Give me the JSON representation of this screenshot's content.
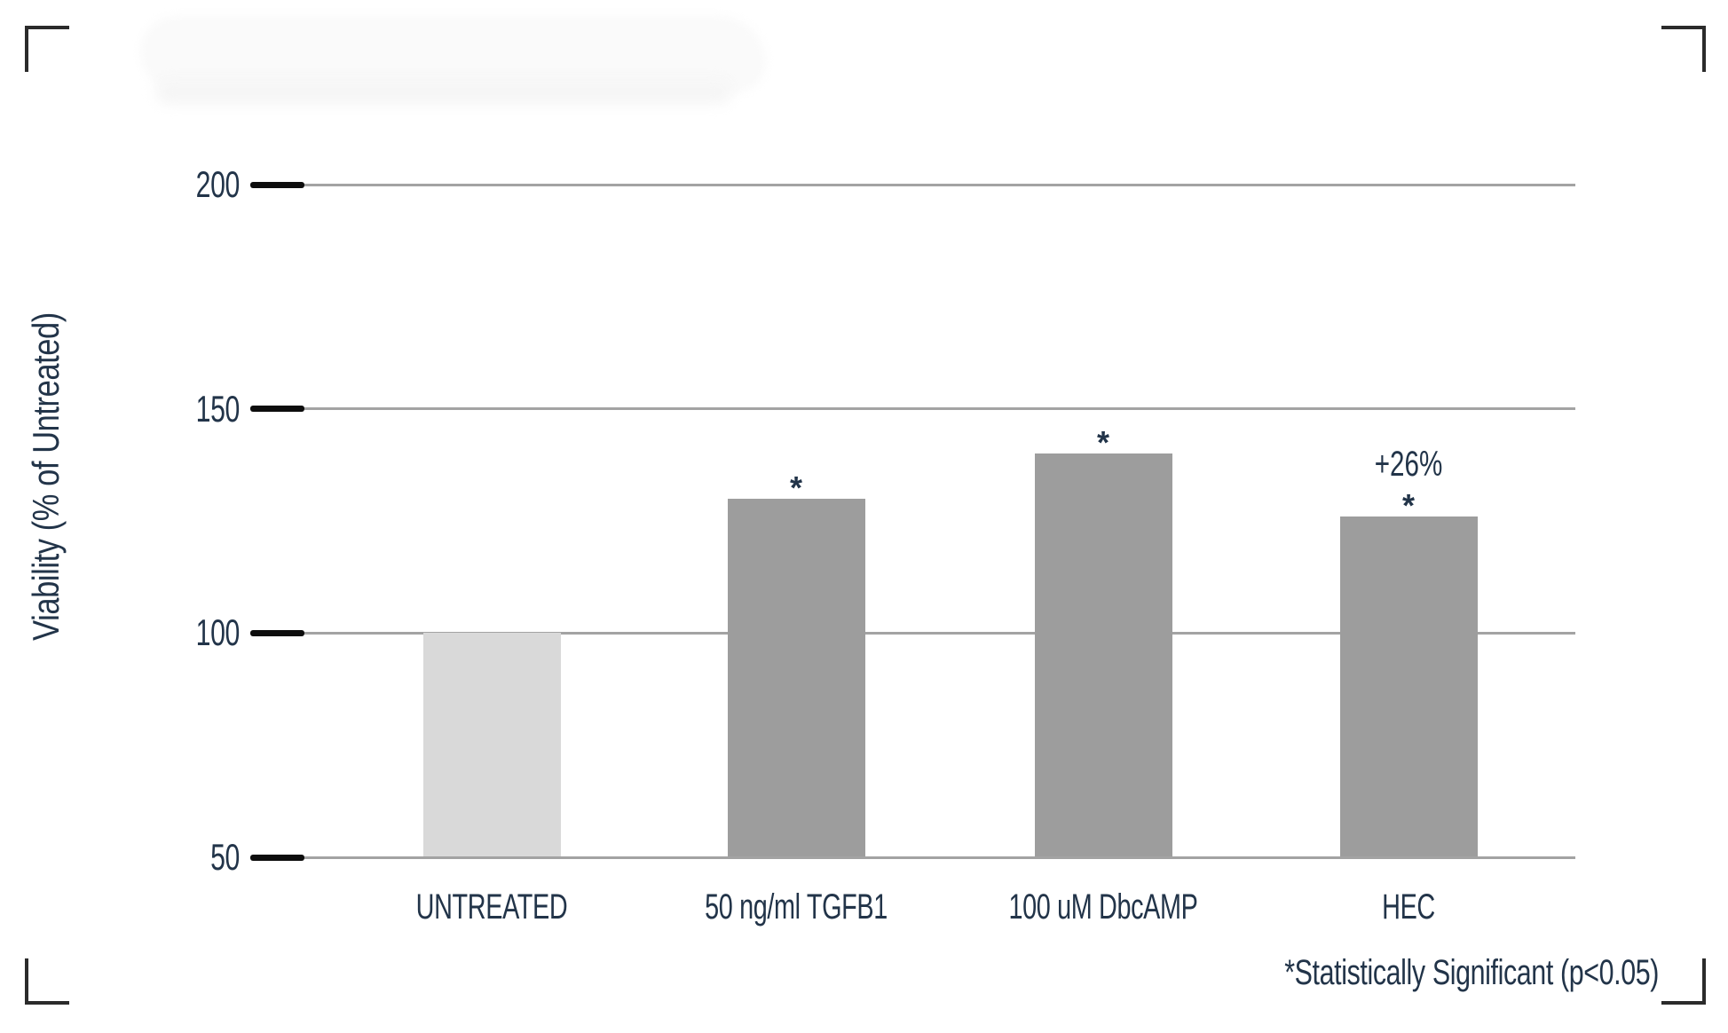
{
  "chart_data": {
    "type": "bar",
    "title": "",
    "ylabel": "Viability (% of Untreated)",
    "categories": [
      "UNTREATED",
      "50 ng/ml TGFB1",
      "100 uM DbcAMP",
      "HEC"
    ],
    "values": [
      100,
      130,
      140,
      126
    ],
    "bar_colors": [
      "#d9d9d9",
      "#9d9d9d",
      "#9d9d9d",
      "#9d9d9d"
    ],
    "significant": [
      false,
      true,
      true,
      true
    ],
    "significance_marker": "*",
    "annotations": [
      {
        "category_index": 3,
        "text": "+26%"
      }
    ],
    "y_ticks": [
      200,
      150,
      100,
      50
    ],
    "ylim": [
      50,
      210
    ],
    "baseline": 50,
    "grid": true,
    "footnote": "*Statistically Significant (p<0.05)",
    "colors": {
      "text": "#223449",
      "untreated_bar": "#d9d9d9",
      "treated_bar": "#9d9d9d",
      "gridline": "#a3a3a3",
      "tick": "#0d0d0d",
      "crop_mark": "#2b2b2b"
    }
  }
}
